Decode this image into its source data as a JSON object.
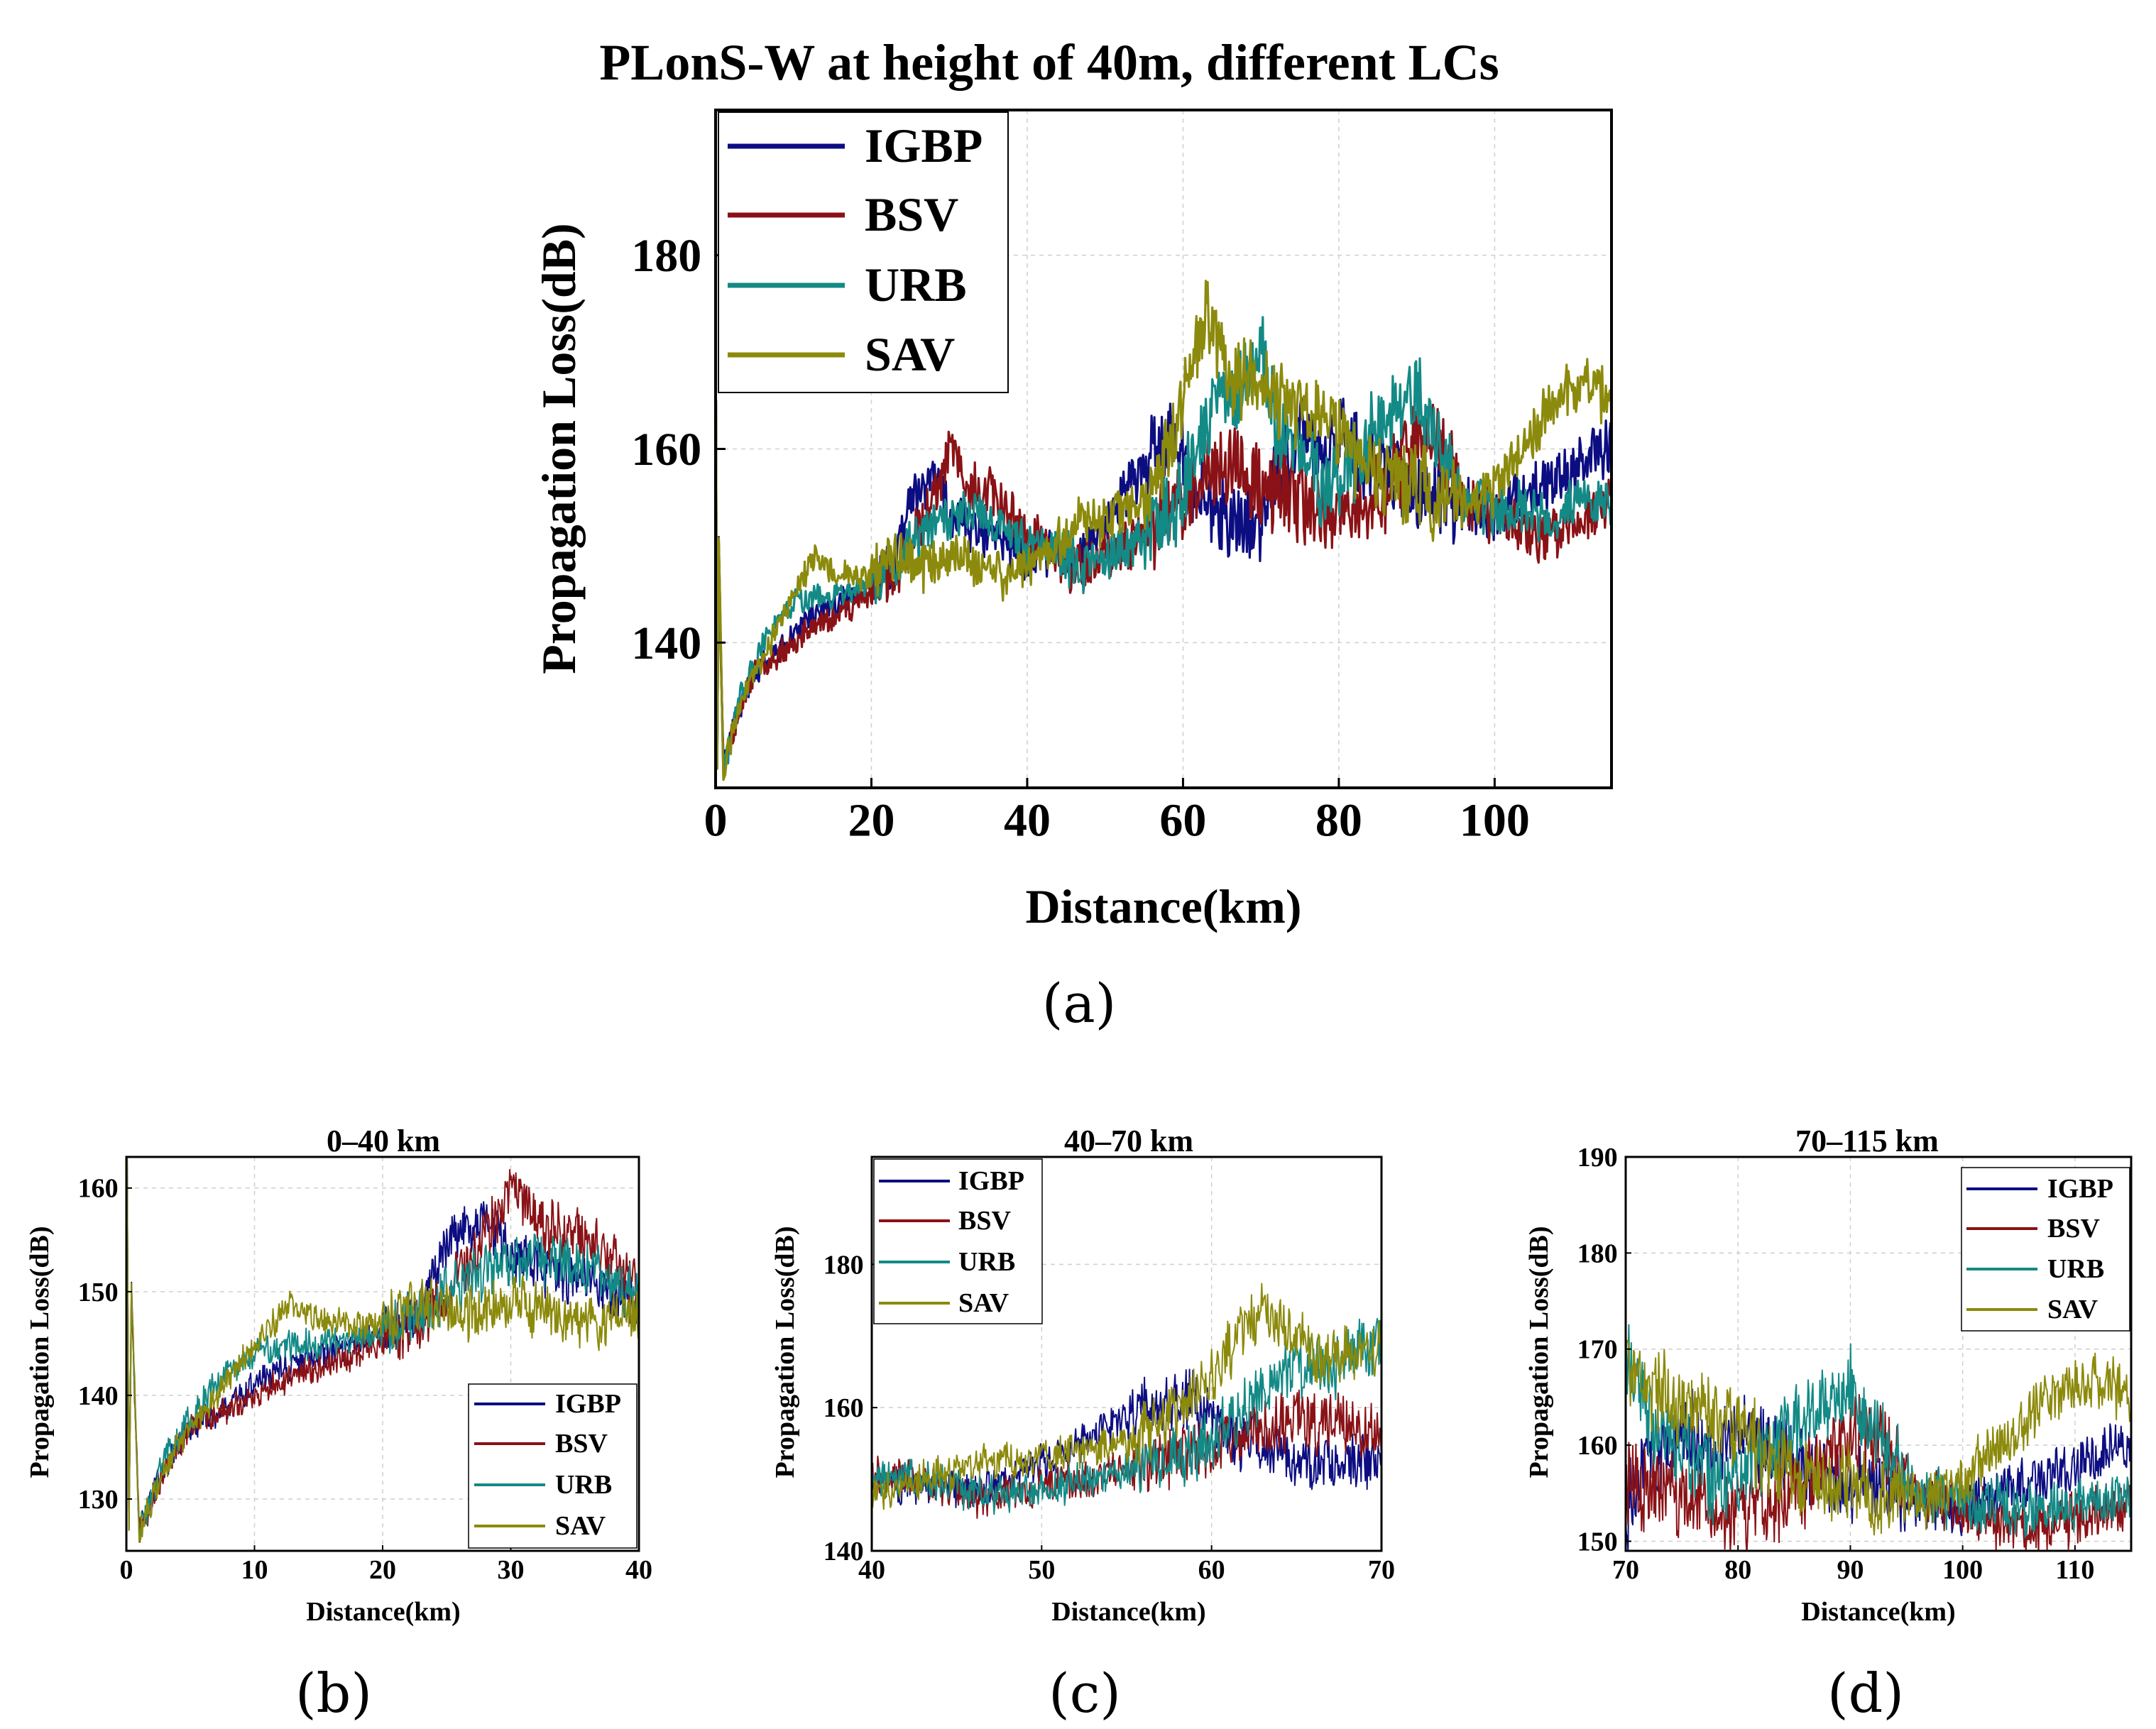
{
  "colors": {
    "IGBP": "#0d0d82",
    "BSV": "#8a1216",
    "URB": "#138a86",
    "SAV": "#8c8a0c"
  },
  "panels": {
    "a": {
      "title": "PLonS-W at height of 40m, different LCs",
      "caption": "(a)",
      "xlabel": "Distance(km)",
      "ylabel": "Propagation Loss(dB)",
      "xlim": [
        0,
        115
      ],
      "ylim": [
        125,
        195
      ],
      "xticks": [
        0,
        20,
        40,
        60,
        80,
        100
      ],
      "yticks": [
        140,
        160,
        180
      ],
      "legend": [
        "IGBP",
        "BSV",
        "URB",
        "SAV"
      ]
    },
    "b": {
      "title": "0–40 km",
      "caption": "(b)",
      "xlabel": "Distance(km)",
      "ylabel": "Propagation Loss(dB)",
      "xlim": [
        0,
        40
      ],
      "ylim": [
        125,
        163
      ],
      "xticks": [
        0,
        10,
        20,
        30,
        40
      ],
      "yticks": [
        130,
        140,
        150,
        160
      ],
      "legend": [
        "IGBP",
        "BSV",
        "URB",
        "SAV"
      ]
    },
    "c": {
      "title": "40–70 km",
      "caption": "(c)",
      "xlabel": "Distance(km)",
      "ylabel": "Propagation Loss(dB)",
      "xlim": [
        40,
        70
      ],
      "ylim": [
        140,
        195
      ],
      "xticks": [
        40,
        50,
        60,
        70
      ],
      "yticks": [
        140,
        160,
        180
      ],
      "legend": [
        "IGBP",
        "BSV",
        "URB",
        "SAV"
      ]
    },
    "d": {
      "title": "70–115 km",
      "caption": "(d)",
      "xlabel": "Distance(km)",
      "ylabel": "Propagation Loss(dB)",
      "xlim": [
        70,
        115
      ],
      "ylim": [
        149,
        190
      ],
      "xticks": [
        70,
        80,
        90,
        100,
        110
      ],
      "yticks": [
        150,
        160,
        170,
        180,
        190
      ],
      "legend": [
        "IGBP",
        "BSV",
        "URB",
        "SAV"
      ]
    }
  },
  "chart_data": {
    "type": "line",
    "title": "PLonS-W at height of 40m, different LCs",
    "xlabel": "Distance(km)",
    "ylabel": "Propagation Loss(dB)",
    "xlim": [
      0,
      115
    ],
    "ylim": [
      125,
      195
    ],
    "x": [
      0,
      1,
      3,
      5,
      7,
      10,
      13,
      16,
      20,
      23,
      25,
      28,
      30,
      33,
      36,
      40,
      43,
      46,
      50,
      53,
      56,
      59,
      61,
      63,
      65,
      67,
      70,
      72,
      75,
      78,
      80,
      83,
      86,
      90,
      93,
      96,
      100,
      103,
      106,
      109,
      112,
      115
    ],
    "series": [
      {
        "name": "IGBP",
        "values": [
          165,
          127,
          133,
          137,
          138,
          141,
          143,
          144,
          146,
          148,
          155,
          157,
          153,
          152,
          151,
          149,
          149,
          148,
          152,
          156,
          160,
          161,
          157,
          154,
          153,
          152,
          153,
          158,
          162,
          159,
          162,
          160,
          158,
          156,
          155,
          154,
          153,
          155,
          156,
          157,
          159,
          160
        ]
      },
      {
        "name": "BSV",
        "values": [
          165,
          127,
          133,
          137,
          138,
          140,
          142,
          143,
          145,
          147,
          150,
          155,
          160,
          156,
          155,
          151,
          150,
          147,
          149,
          150,
          152,
          154,
          155,
          157,
          158,
          158,
          156,
          156,
          155,
          153,
          153,
          154,
          156,
          161,
          160,
          155,
          153,
          152,
          151,
          152,
          153,
          154
        ]
      },
      {
        "name": "URB",
        "values": [
          165,
          127,
          134,
          138,
          141,
          144,
          145,
          145,
          146,
          148,
          150,
          152,
          153,
          153,
          152,
          150,
          150,
          148,
          148,
          150,
          152,
          154,
          158,
          162,
          166,
          165,
          170,
          163,
          160,
          156,
          157,
          160,
          163,
          166,
          160,
          155,
          154,
          154,
          153,
          154,
          154,
          155
        ]
      },
      {
        "name": "SAV",
        "values": [
          165,
          127,
          133,
          137,
          140,
          145,
          149,
          147,
          147,
          149,
          148,
          148,
          149,
          148,
          147,
          148,
          150,
          152,
          153,
          154,
          156,
          162,
          168,
          174,
          170,
          167,
          168,
          166,
          164,
          163,
          162,
          158,
          157,
          156,
          155,
          154,
          156,
          160,
          163,
          166,
          167,
          165
        ]
      }
    ]
  }
}
